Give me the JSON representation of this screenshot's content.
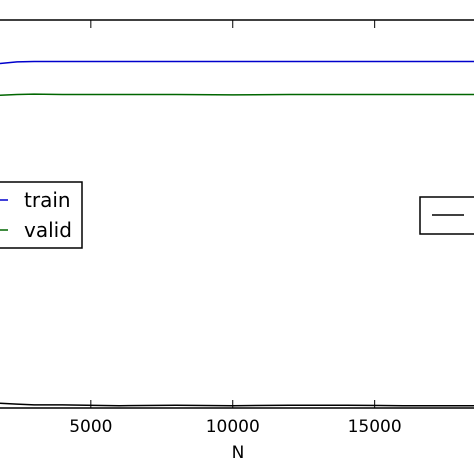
{
  "chart_data": {
    "type": "line",
    "xlabel": "N",
    "ylabel": "",
    "title": "",
    "xlim": [
      1800,
      18500
    ],
    "ylim": [
      0,
      1
    ],
    "x_ticks": [
      5000,
      10000,
      15000
    ],
    "x_tick_labels": [
      "5000",
      "10000",
      "15000"
    ],
    "grid": false,
    "series": [
      {
        "name": "train",
        "color": "#0000cc",
        "x": [
          1800,
          2400,
          3000,
          4000,
          6000,
          8000,
          10000,
          12000,
          14000,
          16000,
          18500
        ],
        "y": [
          0.888,
          0.892,
          0.893,
          0.893,
          0.893,
          0.893,
          0.893,
          0.893,
          0.893,
          0.893,
          0.893
        ]
      },
      {
        "name": "valid",
        "color": "#006600",
        "x": [
          1800,
          2400,
          3000,
          4000,
          6000,
          8000,
          10000,
          12000,
          14000,
          16000,
          18500
        ],
        "y": [
          0.806,
          0.808,
          0.809,
          0.808,
          0.808,
          0.808,
          0.807,
          0.808,
          0.808,
          0.808,
          0.808
        ]
      },
      {
        "name": "",
        "color": "#000000",
        "x": [
          1800,
          2400,
          3000,
          4000,
          6000,
          8000,
          10000,
          12000,
          14000,
          16000,
          18500
        ],
        "y": [
          0.012,
          0.01,
          0.008,
          0.008,
          0.006,
          0.007,
          0.006,
          0.007,
          0.007,
          0.006,
          0.006
        ]
      }
    ],
    "legends": [
      {
        "placement": "center-left",
        "entries": [
          "train",
          "valid"
        ]
      },
      {
        "placement": "center-right",
        "entries": [
          ""
        ]
      }
    ]
  }
}
